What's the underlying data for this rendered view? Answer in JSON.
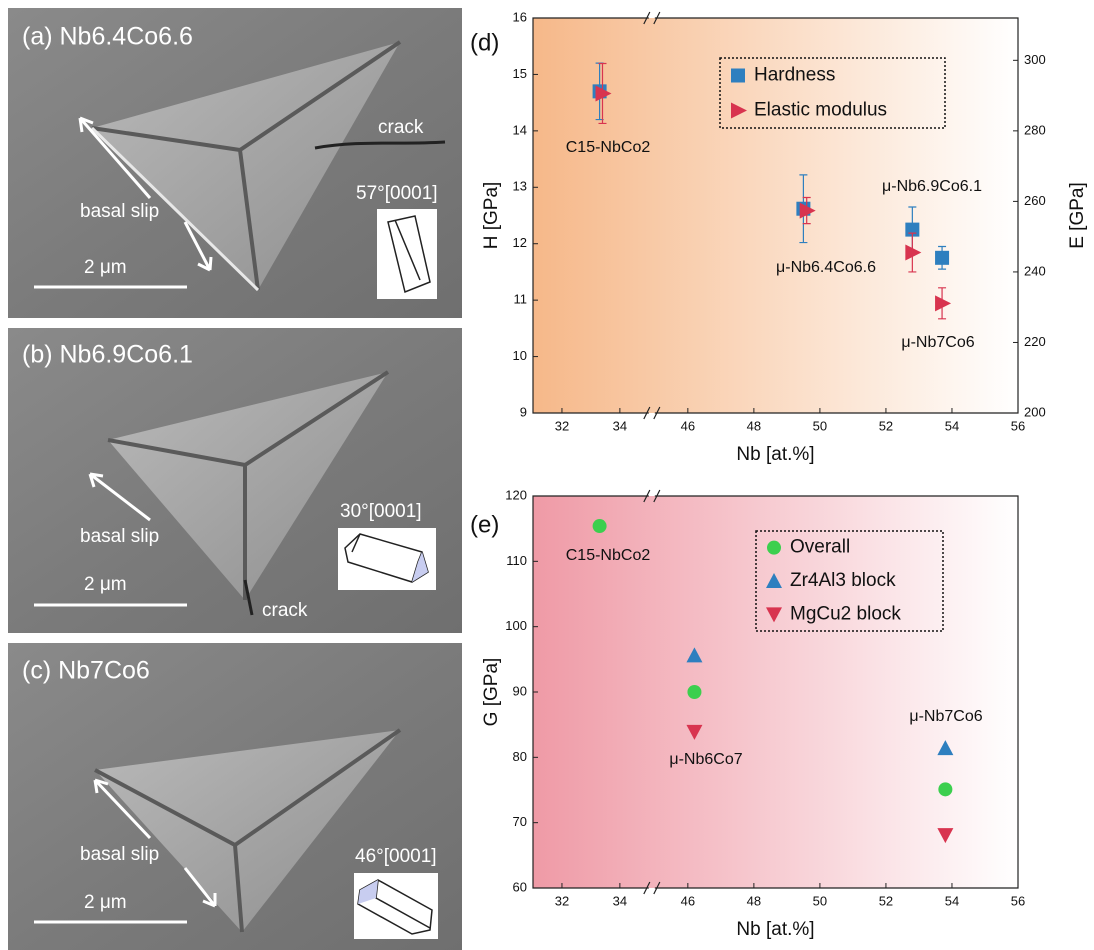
{
  "panels": [
    {
      "label": "(a) Nb6.4Co6.6",
      "orientation": "57°[0001]",
      "slip": "basal slip",
      "scale": "2 μm",
      "crack": "crack"
    },
    {
      "label": "(b) Nb6.9Co6.1",
      "orientation": "30°[0001]",
      "slip": "basal slip",
      "scale": "2 μm",
      "crack": "crack"
    },
    {
      "label": "(c) Nb7Co6",
      "orientation": "46°[0001]",
      "slip": "basal slip",
      "scale": "2 μm"
    }
  ],
  "chart_data": [
    {
      "type": "scatter",
      "panel_label": "(d)",
      "xlabel": "Nb [at.%]",
      "ylabel": "H [GPa]",
      "y2label": "E [GPa]",
      "xlim": [
        31,
        56
      ],
      "xbreak": [
        35,
        45
      ],
      "xticks": [
        32,
        34,
        46,
        48,
        50,
        52,
        54,
        56
      ],
      "ylim": [
        9,
        16
      ],
      "yticks": [
        9,
        10,
        11,
        12,
        13,
        14,
        15,
        16
      ],
      "y2lim": [
        200,
        312
      ],
      "y2ticks": [
        200,
        220,
        240,
        260,
        280,
        300
      ],
      "legend": "upper right",
      "background": "#f6b889",
      "series": [
        {
          "name": "Hardness",
          "color": "#2e7fbf",
          "marker": "square",
          "x": [
            33.3,
            49.5,
            52.8,
            53.7
          ],
          "values": [
            14.7,
            12.62,
            12.25,
            11.75
          ],
          "errors": [
            0.5,
            0.6,
            0.4,
            0.2
          ]
        },
        {
          "name": "Elastic modulus",
          "color": "#d8344f",
          "marker": "triangle-right",
          "axis": "y2",
          "x": [
            33.4,
            49.6,
            52.8,
            53.7
          ],
          "values": [
            290.6,
            257.4,
            245.5,
            231.1
          ],
          "errors": [
            8.5,
            3.7,
            5.5,
            4.4
          ]
        }
      ],
      "annotations": [
        "C15-NbCo2",
        "μ-Nb6.4Co6.6",
        "μ-Nb6.9Co6.1",
        "μ-Nb7Co6"
      ]
    },
    {
      "type": "scatter",
      "panel_label": "(e)",
      "xlabel": "Nb [at.%]",
      "ylabel": "G [GPa]",
      "xlim": [
        31,
        56
      ],
      "xbreak": [
        35,
        45
      ],
      "xticks": [
        32,
        34,
        46,
        48,
        50,
        52,
        54,
        56
      ],
      "ylim": [
        60,
        120
      ],
      "yticks": [
        60,
        70,
        80,
        90,
        100,
        110,
        120
      ],
      "legend": "upper right",
      "background": "#ef9aa6",
      "series": [
        {
          "name": "Overall",
          "color": "#3ccf4e",
          "marker": "circle",
          "x": [
            33.3,
            46.2,
            53.8
          ],
          "values": [
            115.4,
            90,
            75.1
          ]
        },
        {
          "name": "Zr4Al3 block",
          "color": "#2e7fbf",
          "marker": "triangle-up",
          "x": [
            46.2,
            53.8
          ],
          "values": [
            95.6,
            81.4
          ]
        },
        {
          "name": "MgCu2 block",
          "color": "#d8344f",
          "marker": "triangle-down",
          "x": [
            46.2,
            53.8
          ],
          "values": [
            83.9,
            68.1
          ]
        }
      ],
      "annotations": [
        "C15-NbCo2",
        "μ-Nb6Co7",
        "μ-Nb7Co6"
      ]
    }
  ]
}
